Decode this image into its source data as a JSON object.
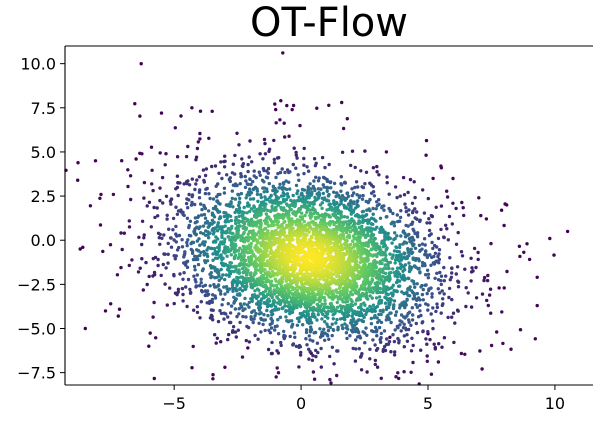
{
  "chart_data": {
    "type": "scatter",
    "title": "OT-Flow",
    "xlabel": "",
    "ylabel": "",
    "xlim": [
      -9.3,
      11.5
    ],
    "ylim": [
      -8.2,
      11.0
    ],
    "xticks": [
      -5,
      0,
      5,
      10
    ],
    "xtick_labels": [
      "−5",
      "0",
      "5",
      "10"
    ],
    "yticks": [
      -7.5,
      -5.0,
      -2.5,
      0.0,
      2.5,
      5.0,
      7.5,
      10.0
    ],
    "ytick_labels": [
      "−7.5",
      "−5.0",
      "−2.5",
      "0.0",
      "2.5",
      "5.0",
      "7.5",
      "10.0"
    ],
    "grid": false,
    "legend": "none",
    "colormap": "viridis",
    "color_encoding": "point density",
    "colormap_stops": [
      "#440154",
      "#3b528b",
      "#21918c",
      "#5ec962",
      "#fde725"
    ],
    "distribution": {
      "description": "Dense 2D cloud centered near (0, -1), broader toward the upper left",
      "center": [
        0.3,
        -0.9
      ],
      "n_points": 5000
    },
    "outlier_points": [
      {
        "x": -6.3,
        "y": 10.0
      },
      {
        "x": 1.6,
        "y": 7.8
      },
      {
        "x": -0.8,
        "y": 7.9
      },
      {
        "x": -8.8,
        "y": 3.4
      },
      {
        "x": -8.1,
        "y": 4.5
      },
      {
        "x": -8.6,
        "y": -0.4
      },
      {
        "x": -8.7,
        "y": -0.5
      },
      {
        "x": -8.5,
        "y": -5.0
      },
      {
        "x": -7.5,
        "y": -3.6
      },
      {
        "x": -7.2,
        "y": -4.3
      },
      {
        "x": -3.0,
        "y": -7.2
      },
      {
        "x": -2.1,
        "y": -6.1
      },
      {
        "x": 0.4,
        "y": -6.4
      },
      {
        "x": 10.5,
        "y": 0.5
      },
      {
        "x": 9.8,
        "y": 0.1
      },
      {
        "x": 9.3,
        "y": -2.1
      },
      {
        "x": 8.9,
        "y": -0.2
      },
      {
        "x": 8.0,
        "y": -2.7
      },
      {
        "x": 7.8,
        "y": -2.7
      },
      {
        "x": 8.1,
        "y": 2.0
      },
      {
        "x": 7.9,
        "y": 1.7
      },
      {
        "x": 7.0,
        "y": 2.4
      },
      {
        "x": 5.2,
        "y": 3.5
      },
      {
        "x": -6.5,
        "y": 4.6
      },
      {
        "x": -5.5,
        "y": 7.2
      },
      {
        "x": -4.3,
        "y": 7.5
      },
      {
        "x": -3.5,
        "y": 7.3
      },
      {
        "x": -1.0,
        "y": 7.4
      },
      {
        "x": -6.0,
        "y": -6.0
      },
      {
        "x": 5.0,
        "y": -5.3
      },
      {
        "x": 3.5,
        "y": -5.5
      }
    ]
  }
}
